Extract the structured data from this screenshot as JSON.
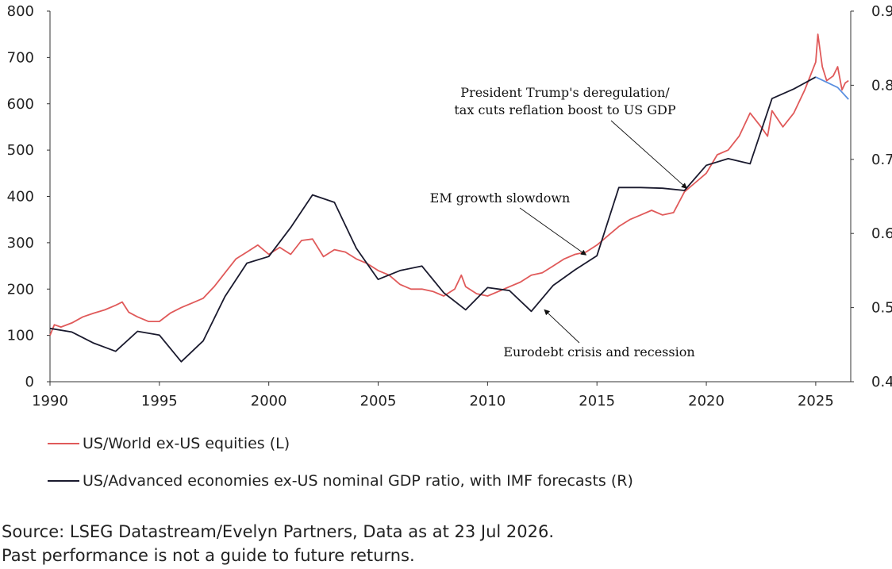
{
  "chart_data": {
    "type": "line",
    "x_range": [
      1990,
      2026.6
    ],
    "x_ticks": [
      1990,
      1995,
      2000,
      2005,
      2010,
      2015,
      2020,
      2025
    ],
    "y_left": {
      "range": [
        0,
        800
      ],
      "ticks": [
        0,
        100,
        200,
        300,
        400,
        500,
        600,
        700,
        800
      ]
    },
    "y_right": {
      "range": [
        0.4,
        0.9
      ],
      "ticks": [
        "0.4",
        "0.5",
        "0.6",
        "0.7",
        "0.8",
        "0.9"
      ]
    },
    "grid": false,
    "legend_position": "bottom-left",
    "series": [
      {
        "name": "US/World ex-US equities (L)",
        "axis": "left",
        "color": "#e05a5a",
        "points": [
          [
            1990.0,
            100
          ],
          [
            1990.2,
            123
          ],
          [
            1990.5,
            118
          ],
          [
            1991.0,
            127
          ],
          [
            1991.5,
            140
          ],
          [
            1992.0,
            148
          ],
          [
            1992.5,
            155
          ],
          [
            1993.0,
            165
          ],
          [
            1993.3,
            172
          ],
          [
            1993.6,
            150
          ],
          [
            1994.0,
            140
          ],
          [
            1994.5,
            130
          ],
          [
            1995.0,
            130
          ],
          [
            1995.5,
            148
          ],
          [
            1996.0,
            160
          ],
          [
            1996.5,
            170
          ],
          [
            1997.0,
            180
          ],
          [
            1997.5,
            205
          ],
          [
            1998.0,
            235
          ],
          [
            1998.5,
            265
          ],
          [
            1999.0,
            280
          ],
          [
            1999.5,
            295
          ],
          [
            2000.0,
            275
          ],
          [
            2000.5,
            290
          ],
          [
            2001.0,
            275
          ],
          [
            2001.5,
            305
          ],
          [
            2002.0,
            308
          ],
          [
            2002.5,
            270
          ],
          [
            2003.0,
            285
          ],
          [
            2003.5,
            280
          ],
          [
            2004.0,
            265
          ],
          [
            2004.5,
            255
          ],
          [
            2005.0,
            240
          ],
          [
            2005.5,
            230
          ],
          [
            2006.0,
            210
          ],
          [
            2006.5,
            200
          ],
          [
            2007.0,
            200
          ],
          [
            2007.5,
            195
          ],
          [
            2008.0,
            185
          ],
          [
            2008.5,
            200
          ],
          [
            2008.8,
            230
          ],
          [
            2009.0,
            205
          ],
          [
            2009.5,
            190
          ],
          [
            2010.0,
            185
          ],
          [
            2010.5,
            195
          ],
          [
            2011.0,
            205
          ],
          [
            2011.5,
            215
          ],
          [
            2012.0,
            230
          ],
          [
            2012.5,
            235
          ],
          [
            2013.0,
            250
          ],
          [
            2013.5,
            265
          ],
          [
            2014.0,
            275
          ],
          [
            2014.5,
            280
          ],
          [
            2015.0,
            295
          ],
          [
            2015.5,
            315
          ],
          [
            2016.0,
            335
          ],
          [
            2016.5,
            350
          ],
          [
            2017.0,
            360
          ],
          [
            2017.5,
            370
          ],
          [
            2018.0,
            360
          ],
          [
            2018.5,
            365
          ],
          [
            2019.0,
            410
          ],
          [
            2019.5,
            430
          ],
          [
            2020.0,
            450
          ],
          [
            2020.5,
            490
          ],
          [
            2021.0,
            500
          ],
          [
            2021.5,
            530
          ],
          [
            2022.0,
            580
          ],
          [
            2022.5,
            550
          ],
          [
            2022.8,
            530
          ],
          [
            2023.0,
            585
          ],
          [
            2023.5,
            550
          ],
          [
            2024.0,
            580
          ],
          [
            2024.5,
            630
          ],
          [
            2025.0,
            690
          ],
          [
            2025.1,
            750
          ],
          [
            2025.3,
            680
          ],
          [
            2025.5,
            650
          ],
          [
            2025.8,
            660
          ],
          [
            2026.0,
            680
          ],
          [
            2026.2,
            630
          ],
          [
            2026.35,
            645
          ],
          [
            2026.5,
            650
          ]
        ]
      },
      {
        "name": "US/Advanced economies ex-US nominal GDP ratio, with IMF forecasts (R)",
        "axis": "right",
        "color": "#1a1a2e",
        "forecast_color": "#5a8fe0",
        "forecast_from": 2025.0,
        "points": [
          [
            1990.0,
            0.472
          ],
          [
            1991.0,
            0.467
          ],
          [
            1992.0,
            0.452
          ],
          [
            1993.0,
            0.441
          ],
          [
            1994.0,
            0.468
          ],
          [
            1995.0,
            0.463
          ],
          [
            1996.0,
            0.427
          ],
          [
            1997.0,
            0.455
          ],
          [
            1998.0,
            0.515
          ],
          [
            1999.0,
            0.56
          ],
          [
            2000.0,
            0.569
          ],
          [
            2001.0,
            0.608
          ],
          [
            2002.0,
            0.652
          ],
          [
            2003.0,
            0.642
          ],
          [
            2004.0,
            0.58
          ],
          [
            2005.0,
            0.538
          ],
          [
            2006.0,
            0.55
          ],
          [
            2007.0,
            0.556
          ],
          [
            2008.0,
            0.52
          ],
          [
            2009.0,
            0.497
          ],
          [
            2010.0,
            0.527
          ],
          [
            2011.0,
            0.523
          ],
          [
            2012.0,
            0.495
          ],
          [
            2013.0,
            0.53
          ],
          [
            2014.0,
            0.551
          ],
          [
            2015.0,
            0.57
          ],
          [
            2016.0,
            0.662
          ],
          [
            2017.0,
            0.662
          ],
          [
            2018.0,
            0.661
          ],
          [
            2019.0,
            0.658
          ],
          [
            2020.0,
            0.692
          ],
          [
            2021.0,
            0.701
          ],
          [
            2022.0,
            0.694
          ],
          [
            2023.0,
            0.782
          ],
          [
            2024.0,
            0.795
          ],
          [
            2025.0,
            0.811
          ],
          [
            2026.0,
            0.797
          ],
          [
            2026.5,
            0.781
          ]
        ]
      }
    ],
    "annotations": [
      {
        "lines": [
          "President Trump's deregulation/",
          "tax cuts reflation boost to US GDP"
        ],
        "target": [
          2019.1,
          0.661
        ]
      },
      {
        "lines": [
          "EM growth slowdown"
        ],
        "target": [
          2014.5,
          0.571
        ]
      },
      {
        "lines": [
          "Eurodebt crisis and recession"
        ],
        "target": [
          2012.6,
          0.497
        ]
      }
    ]
  },
  "legend": {
    "equities": "US/World ex-US equities (L)",
    "gdp": "US/Advanced economies ex-US nominal GDP ratio, with IMF forecasts (R)"
  },
  "source": {
    "line1": "Source: LSEG Datastream/Evelyn Partners, Data as at 23 Jul 2026.",
    "line2": "Past performance is not a guide to future returns."
  }
}
